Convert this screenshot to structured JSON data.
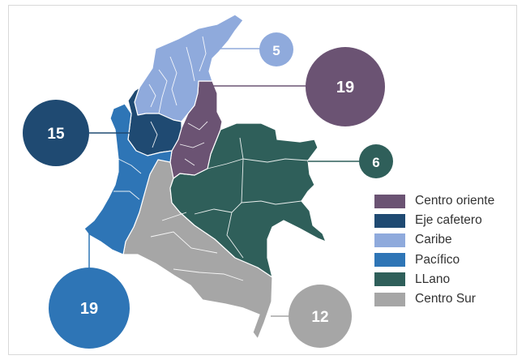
{
  "colors": {
    "centro_oriente": "#6b5373",
    "eje_cafetero": "#1f4a72",
    "caribe": "#8faadc",
    "pacifico": "#2e75b6",
    "llano": "#2f5f5a",
    "centro_sur": "#a6a6a6",
    "border": "#ffffff"
  },
  "legend": [
    {
      "key": "centro_oriente",
      "label": "Centro oriente",
      "color": "#6b5373"
    },
    {
      "key": "eje_cafetero",
      "label": "Eje cafetero",
      "color": "#1f4a72"
    },
    {
      "key": "caribe",
      "label": "Caribe",
      "color": "#8faadc"
    },
    {
      "key": "pacifico",
      "label": "Pacífico",
      "color": "#2e75b6"
    },
    {
      "key": "llano",
      "label": "LLano",
      "color": "#2f5f5a"
    },
    {
      "key": "centro_sur",
      "label": "Centro Sur",
      "color": "#a6a6a6"
    }
  ],
  "regions": {
    "caribe": {
      "value": "5"
    },
    "centro_oriente": {
      "value": "19"
    },
    "llano": {
      "value": "6"
    },
    "eje_cafetero": {
      "value": "15"
    },
    "pacifico": {
      "value": "19"
    },
    "centro_sur": {
      "value": "12"
    }
  }
}
